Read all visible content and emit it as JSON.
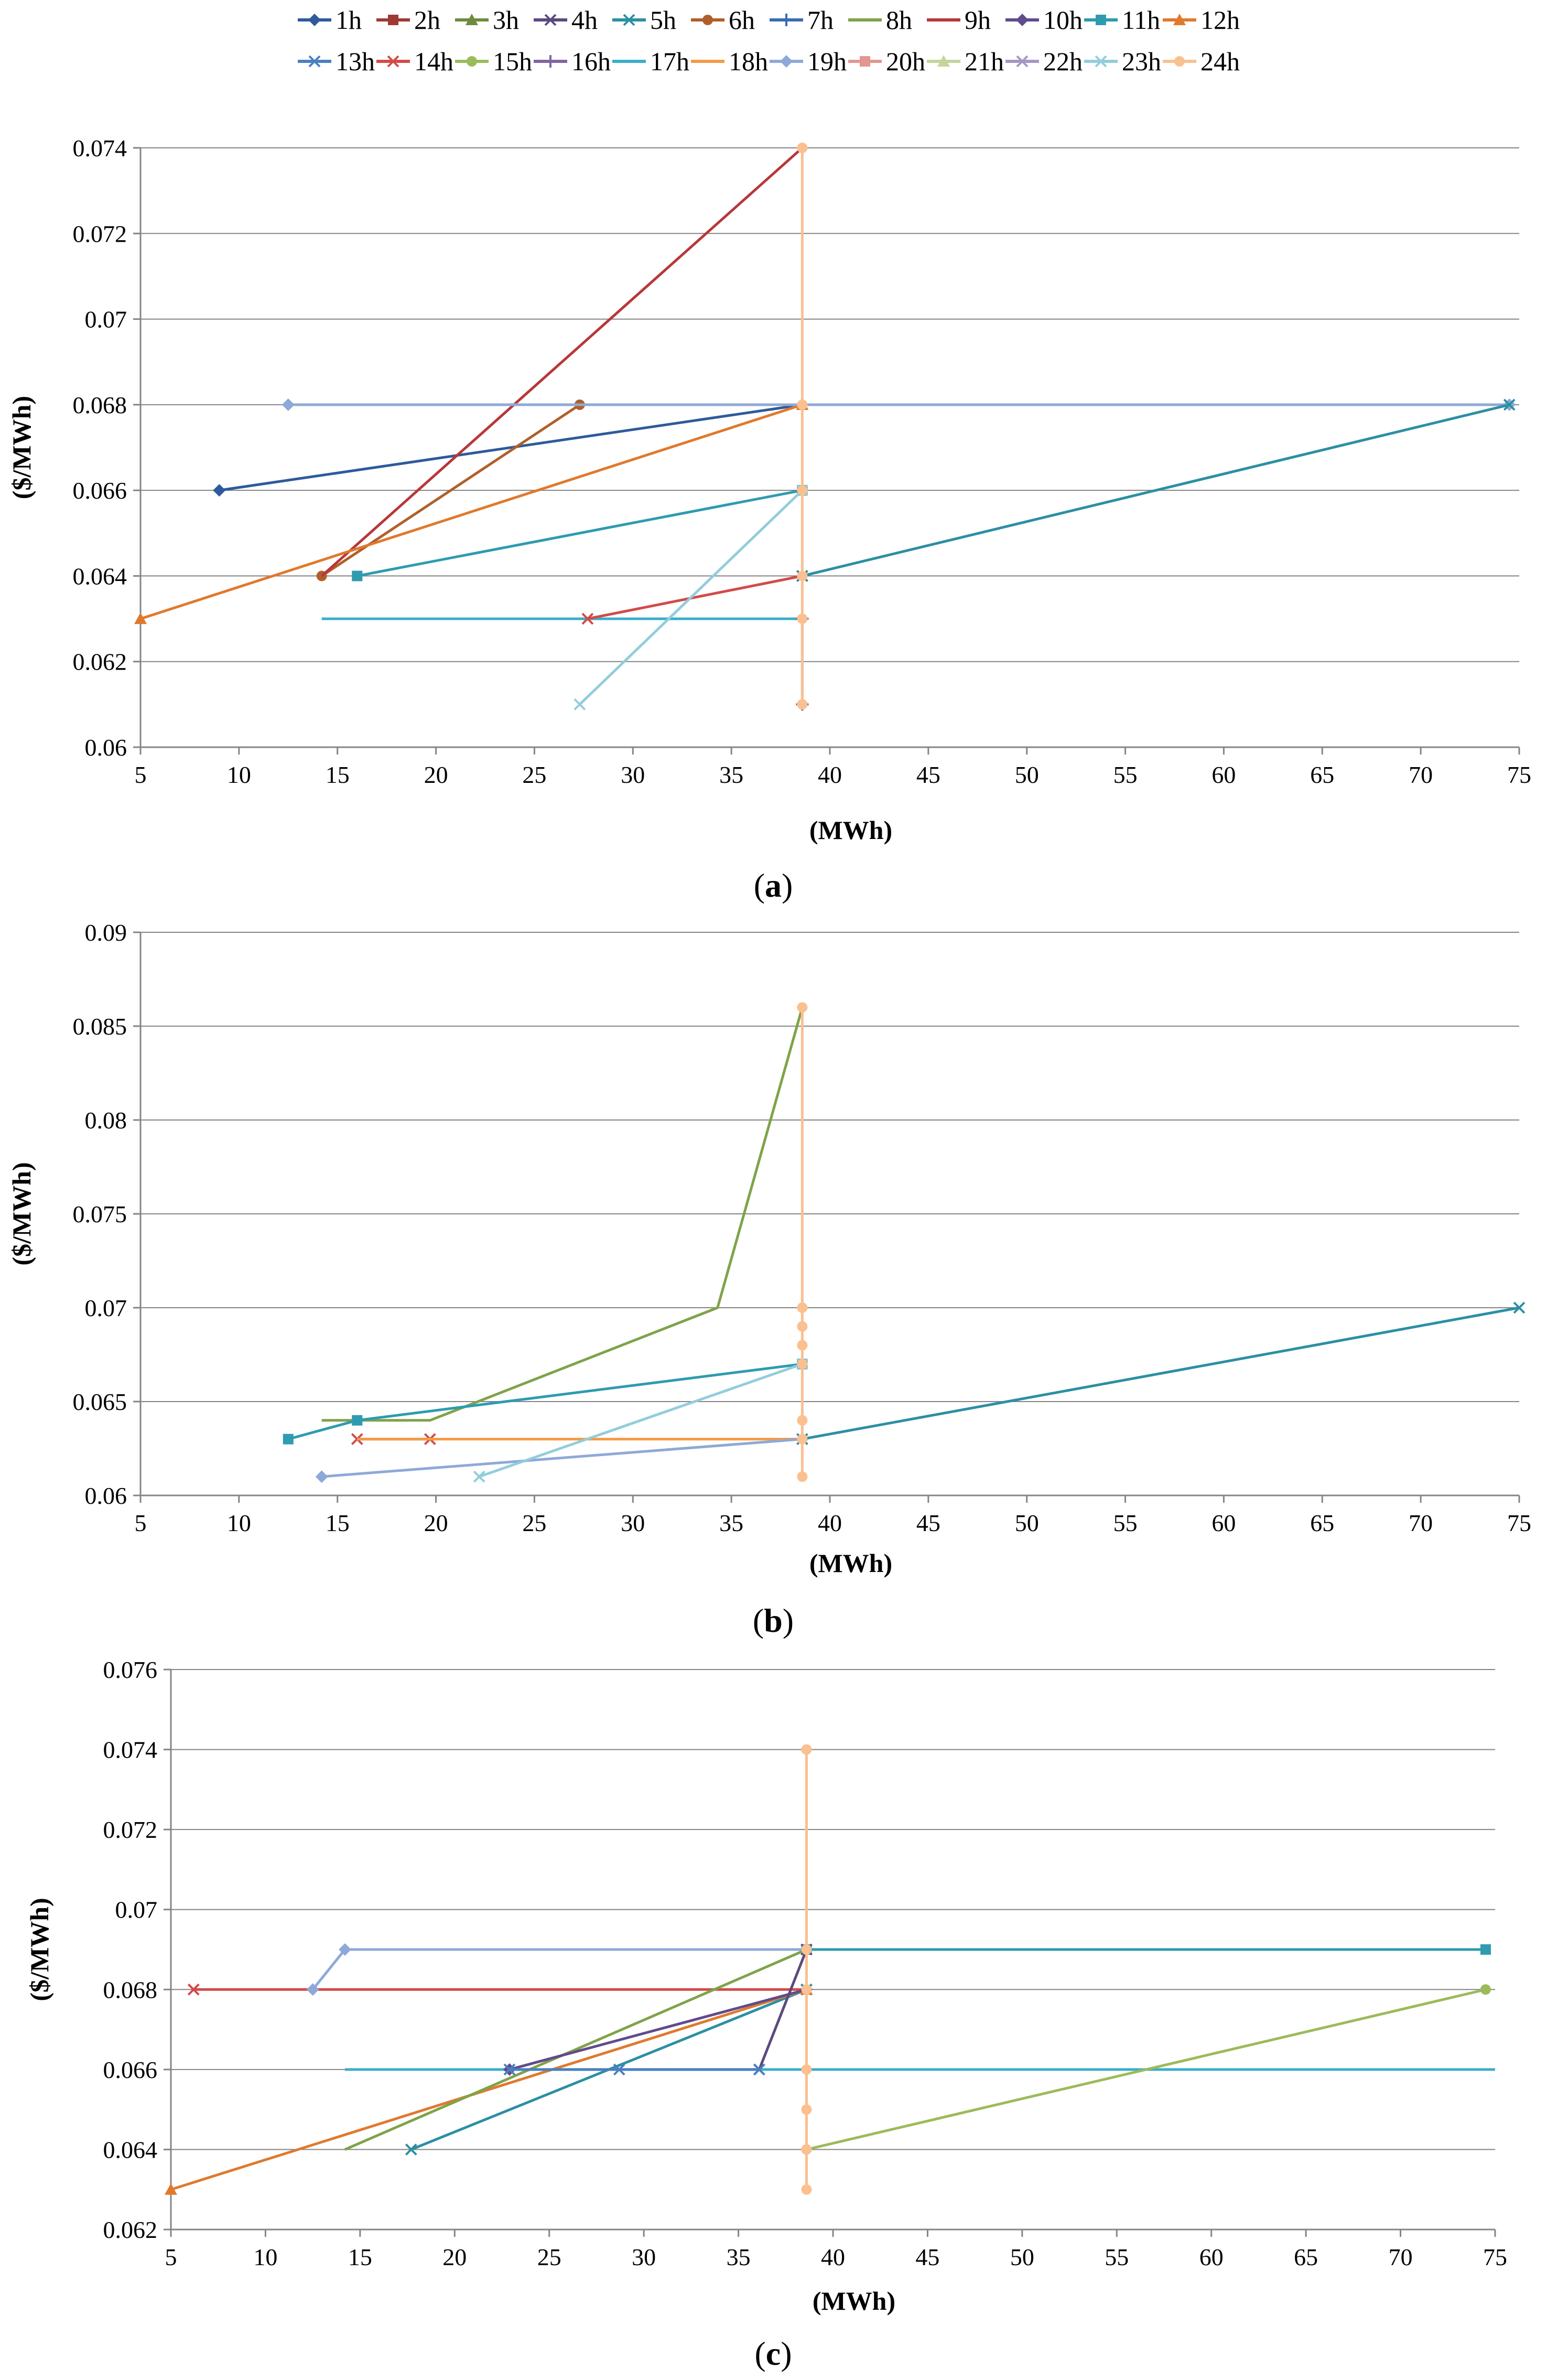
{
  "series_styles": [
    {
      "name": "1h",
      "color": "#2E5A9B",
      "marker": "diamond"
    },
    {
      "name": "2h",
      "color": "#9E3A33",
      "marker": "square"
    },
    {
      "name": "3h",
      "color": "#6E8B3D",
      "marker": "triangle"
    },
    {
      "name": "4h",
      "color": "#5B4A7E",
      "marker": "x"
    },
    {
      "name": "5h",
      "color": "#2C8FA3",
      "marker": "x"
    },
    {
      "name": "6h",
      "color": "#B05F2A",
      "marker": "circle"
    },
    {
      "name": "7h",
      "color": "#3A6CB5",
      "marker": "plus"
    },
    {
      "name": "8h",
      "color": "#7FA349",
      "marker": "none"
    },
    {
      "name": "9h",
      "color": "#B8373A",
      "marker": "none"
    },
    {
      "name": "10h",
      "color": "#604B8C",
      "marker": "diamond"
    },
    {
      "name": "11h",
      "color": "#2E9BB0",
      "marker": "square"
    },
    {
      "name": "12h",
      "color": "#E0792E",
      "marker": "triangle"
    },
    {
      "name": "13h",
      "color": "#4A7FC1",
      "marker": "x"
    },
    {
      "name": "14h",
      "color": "#D24B48",
      "marker": "x"
    },
    {
      "name": "15h",
      "color": "#9BBB59",
      "marker": "circle"
    },
    {
      "name": "16h",
      "color": "#8064A2",
      "marker": "plus"
    },
    {
      "name": "17h",
      "color": "#3AAECB",
      "marker": "none"
    },
    {
      "name": "18h",
      "color": "#F59A45",
      "marker": "none"
    },
    {
      "name": "19h",
      "color": "#8EA9D8",
      "marker": "diamond"
    },
    {
      "name": "20h",
      "color": "#E39690",
      "marker": "square"
    },
    {
      "name": "21h",
      "color": "#C3D69B",
      "marker": "triangle"
    },
    {
      "name": "22h",
      "color": "#A597C4",
      "marker": "x"
    },
    {
      "name": "23h",
      "color": "#92CDDC",
      "marker": "x"
    },
    {
      "name": "24h",
      "color": "#FAC090",
      "marker": "circle"
    }
  ],
  "chart_data": [
    {
      "type": "line",
      "label": "(a)",
      "xlabel": "(MWh)",
      "ylabel": "($/MWh)",
      "xlim": [
        5,
        75
      ],
      "ylim": [
        0.06,
        0.074
      ],
      "xticks": [
        5,
        10,
        15,
        20,
        25,
        30,
        35,
        40,
        45,
        50,
        55,
        60,
        65,
        70,
        75
      ],
      "yticks": [
        0.06,
        0.062,
        0.064,
        0.066,
        0.068,
        0.07,
        0.072,
        0.074
      ],
      "ytick_labels": [
        "0.06",
        "0.062",
        "0.064",
        "0.066",
        "0.068",
        "0.07",
        "0.072",
        "0.074"
      ],
      "grid": true,
      "series": [
        {
          "name": "1h",
          "points": [
            [
              9,
              0.066
            ],
            [
              38.6,
              0.068
            ]
          ]
        },
        {
          "name": "6h",
          "points": [
            [
              14.2,
              0.064
            ],
            [
              27.3,
              0.068
            ]
          ]
        },
        {
          "name": "9h",
          "points": [
            [
              14.2,
              0.064
            ],
            [
              38.6,
              0.074
            ]
          ]
        },
        {
          "name": "12h",
          "points": [
            [
              5,
              0.063
            ],
            [
              38.6,
              0.068
            ]
          ]
        },
        {
          "name": "11h",
          "points": [
            [
              16,
              0.064
            ],
            [
              38.6,
              0.066
            ]
          ]
        },
        {
          "name": "17h",
          "points": [
            [
              14.2,
              0.063
            ],
            [
              38.6,
              0.063
            ]
          ]
        },
        {
          "name": "14h",
          "points": [
            [
              27.7,
              0.063
            ],
            [
              38.6,
              0.064
            ]
          ]
        },
        {
          "name": "23h",
          "points": [
            [
              27.3,
              0.061
            ],
            [
              38.6,
              0.066
            ]
          ]
        },
        {
          "name": "19h",
          "points": [
            [
              12.5,
              0.068
            ],
            [
              74.5,
              0.068
            ]
          ]
        },
        {
          "name": "5h",
          "points": [
            [
              38.6,
              0.064
            ],
            [
              74.5,
              0.068
            ]
          ]
        },
        {
          "name": "16h",
          "points": [
            [
              38.6,
              0.061
            ],
            [
              38.6,
              0.063
            ]
          ]
        },
        {
          "name": "24h",
          "points": [
            [
              38.6,
              0.061
            ],
            [
              38.6,
              0.063
            ],
            [
              38.6,
              0.064
            ],
            [
              38.6,
              0.066
            ],
            [
              38.6,
              0.068
            ],
            [
              38.6,
              0.074
            ]
          ]
        }
      ]
    },
    {
      "type": "line",
      "label": "(b)",
      "xlabel": "(MWh)",
      "ylabel": "($/MWh)",
      "xlim": [
        5,
        75
      ],
      "ylim": [
        0.06,
        0.09
      ],
      "xticks": [
        5,
        10,
        15,
        20,
        25,
        30,
        35,
        40,
        45,
        50,
        55,
        60,
        65,
        70,
        75
      ],
      "yticks": [
        0.06,
        0.065,
        0.07,
        0.075,
        0.08,
        0.085,
        0.09
      ],
      "ytick_labels": [
        "0.06",
        "0.065",
        "0.07",
        "0.075",
        "0.08",
        "0.085",
        "0.09"
      ],
      "grid": true,
      "series": [
        {
          "name": "8h",
          "points": [
            [
              14.2,
              0.064
            ],
            [
              19.7,
              0.064
            ],
            [
              34.3,
              0.07
            ],
            [
              38.6,
              0.086
            ]
          ]
        },
        {
          "name": "11h",
          "points": [
            [
              12.5,
              0.063
            ],
            [
              16,
              0.064
            ],
            [
              38.6,
              0.067
            ]
          ]
        },
        {
          "name": "14h",
          "points": [
            [
              16,
              0.063
            ],
            [
              19.7,
              0.063
            ]
          ]
        },
        {
          "name": "18h",
          "points": [
            [
              16,
              0.063
            ],
            [
              38.6,
              0.063
            ]
          ]
        },
        {
          "name": "19h",
          "points": [
            [
              14.2,
              0.061
            ],
            [
              38.6,
              0.063
            ]
          ]
        },
        {
          "name": "23h",
          "points": [
            [
              22.2,
              0.061
            ],
            [
              38.6,
              0.067
            ]
          ]
        },
        {
          "name": "5h",
          "points": [
            [
              38.6,
              0.063
            ],
            [
              75,
              0.07
            ]
          ]
        },
        {
          "name": "24h",
          "points": [
            [
              38.6,
              0.061
            ],
            [
              38.6,
              0.063
            ],
            [
              38.6,
              0.064
            ],
            [
              38.6,
              0.067
            ],
            [
              38.6,
              0.068
            ],
            [
              38.6,
              0.069
            ],
            [
              38.6,
              0.07
            ],
            [
              38.6,
              0.086
            ]
          ]
        }
      ]
    },
    {
      "type": "line",
      "label": "(c)",
      "xlabel": "(MWh)",
      "ylabel": "($/MWh)",
      "xlim": [
        5,
        75
      ],
      "ylim": [
        0.062,
        0.076
      ],
      "xticks": [
        5,
        10,
        15,
        20,
        25,
        30,
        35,
        40,
        45,
        50,
        55,
        60,
        65,
        70,
        75
      ],
      "yticks": [
        0.062,
        0.064,
        0.066,
        0.068,
        0.07,
        0.072,
        0.074,
        0.076
      ],
      "ytick_labels": [
        "0.062",
        "0.064",
        "0.066",
        "0.068",
        "0.07",
        "0.072",
        "0.074",
        "0.076"
      ],
      "grid": true,
      "series": [
        {
          "name": "14h",
          "points": [
            [
              6.2,
              0.068
            ],
            [
              38.6,
              0.068
            ]
          ]
        },
        {
          "name": "19h",
          "points": [
            [
              12.5,
              0.068
            ],
            [
              14.2,
              0.069
            ],
            [
              38.6,
              0.069
            ]
          ]
        },
        {
          "name": "11h",
          "points": [
            [
              38.6,
              0.069
            ],
            [
              74.5,
              0.069
            ]
          ]
        },
        {
          "name": "17h",
          "points": [
            [
              14.2,
              0.066
            ],
            [
              75,
              0.066
            ]
          ]
        },
        {
          "name": "15h",
          "points": [
            [
              38.6,
              0.064
            ],
            [
              74.5,
              0.068
            ]
          ]
        },
        {
          "name": "5h",
          "points": [
            [
              17.7,
              0.064
            ],
            [
              38.6,
              0.068
            ]
          ]
        },
        {
          "name": "12h",
          "points": [
            [
              5,
              0.063
            ],
            [
              38.6,
              0.068
            ]
          ]
        },
        {
          "name": "8h",
          "points": [
            [
              14.2,
              0.064
            ],
            [
              38.6,
              0.069
            ]
          ]
        },
        {
          "name": "10h",
          "points": [
            [
              22.9,
              0.066
            ],
            [
              38.6,
              0.068
            ]
          ]
        },
        {
          "name": "4h",
          "points": [
            [
              36.1,
              0.066
            ],
            [
              38.6,
              0.069
            ]
          ]
        },
        {
          "name": "13h",
          "points": [
            [
              22.9,
              0.066
            ],
            [
              28.7,
              0.066
            ],
            [
              36.1,
              0.066
            ]
          ]
        },
        {
          "name": "24h",
          "points": [
            [
              38.6,
              0.063
            ],
            [
              38.6,
              0.064
            ],
            [
              38.6,
              0.065
            ],
            [
              38.6,
              0.066
            ],
            [
              38.6,
              0.068
            ],
            [
              38.6,
              0.069
            ],
            [
              38.6,
              0.074
            ]
          ]
        }
      ]
    }
  ]
}
